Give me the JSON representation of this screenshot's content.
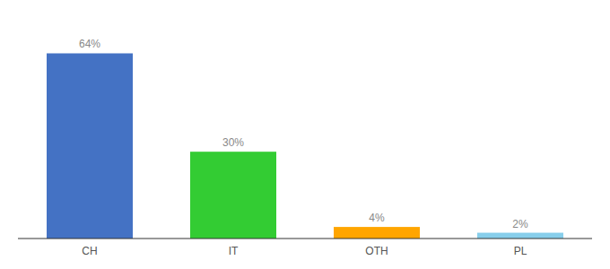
{
  "chart_data": {
    "type": "bar",
    "categories": [
      "CH",
      "IT",
      "OTH",
      "PL"
    ],
    "values": [
      64,
      30,
      4,
      2
    ],
    "value_labels": [
      "64%",
      "30%",
      "4%",
      "2%"
    ],
    "colors": [
      "#4472C4",
      "#33CC33",
      "#FFA500",
      "#87CEEB"
    ],
    "ylim": [
      0,
      75
    ],
    "data_labels": true,
    "tick_labels": "x",
    "grid": false
  }
}
